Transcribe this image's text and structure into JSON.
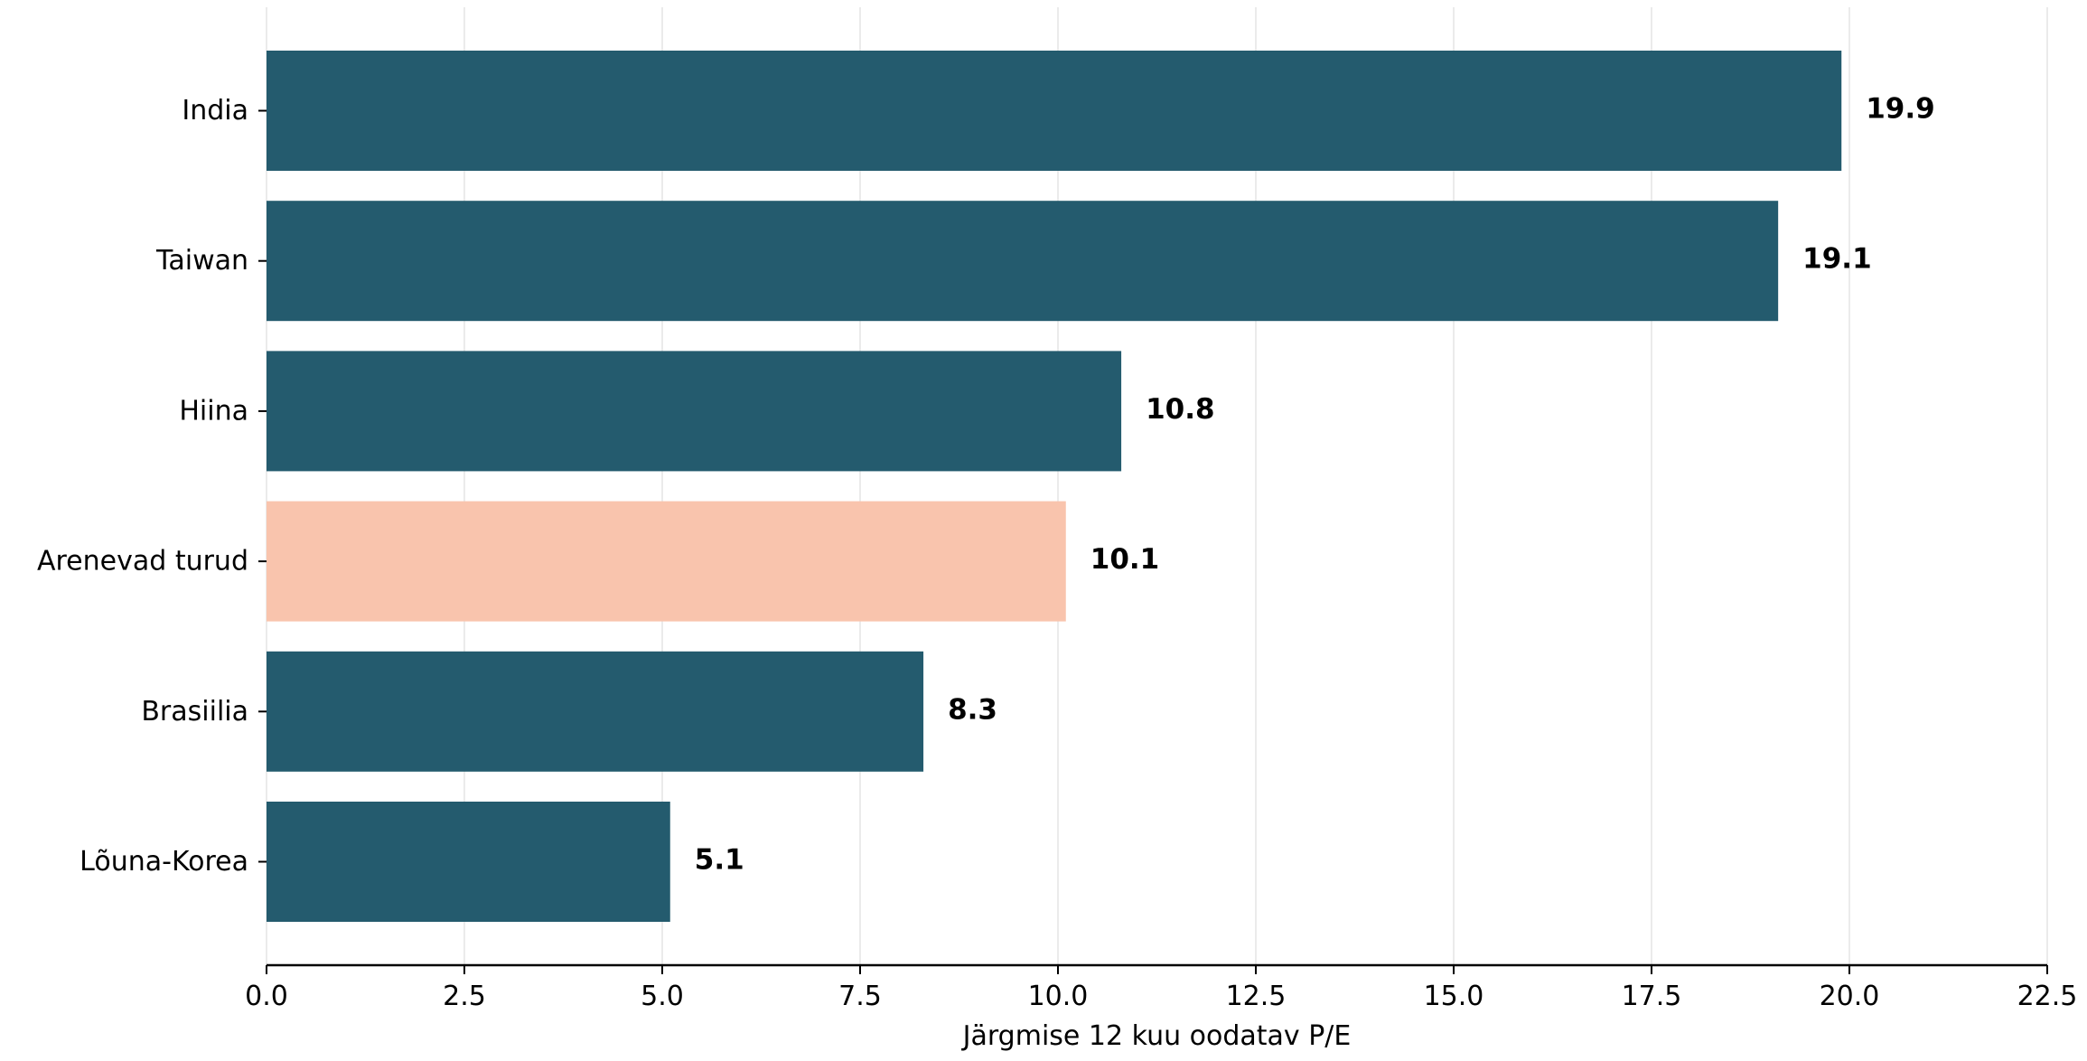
{
  "chart_data": {
    "type": "bar",
    "orientation": "horizontal",
    "categories": [
      "India",
      "Taiwan",
      "Hiina",
      "Arenevad turud",
      "Brasiilia",
      "Lõuna-Korea"
    ],
    "values": [
      19.9,
      19.1,
      10.8,
      10.1,
      8.3,
      5.1
    ],
    "value_labels": [
      "19.9",
      "19.1",
      "10.8",
      "10.1",
      "8.3",
      "5.1"
    ],
    "highlight_category": "Arenevad turud",
    "xlabel": "Järgmise 12 kuu oodatav P/E",
    "ylabel": "",
    "title": "",
    "xlim": [
      0,
      22.5
    ],
    "xticks": [
      0.0,
      2.5,
      5.0,
      7.5,
      10.0,
      12.5,
      15.0,
      17.5,
      20.0,
      22.5
    ],
    "xtick_labels": [
      "0.0",
      "2.5",
      "5.0",
      "7.5",
      "10.0",
      "12.5",
      "15.0",
      "17.5",
      "20.0",
      "22.5"
    ],
    "grid": "vertical",
    "legend": "none",
    "colors": {
      "bar": "#245b6e",
      "highlight": "#f9c4ad",
      "grid": "#e6e6e6",
      "axis": "#000000"
    }
  }
}
